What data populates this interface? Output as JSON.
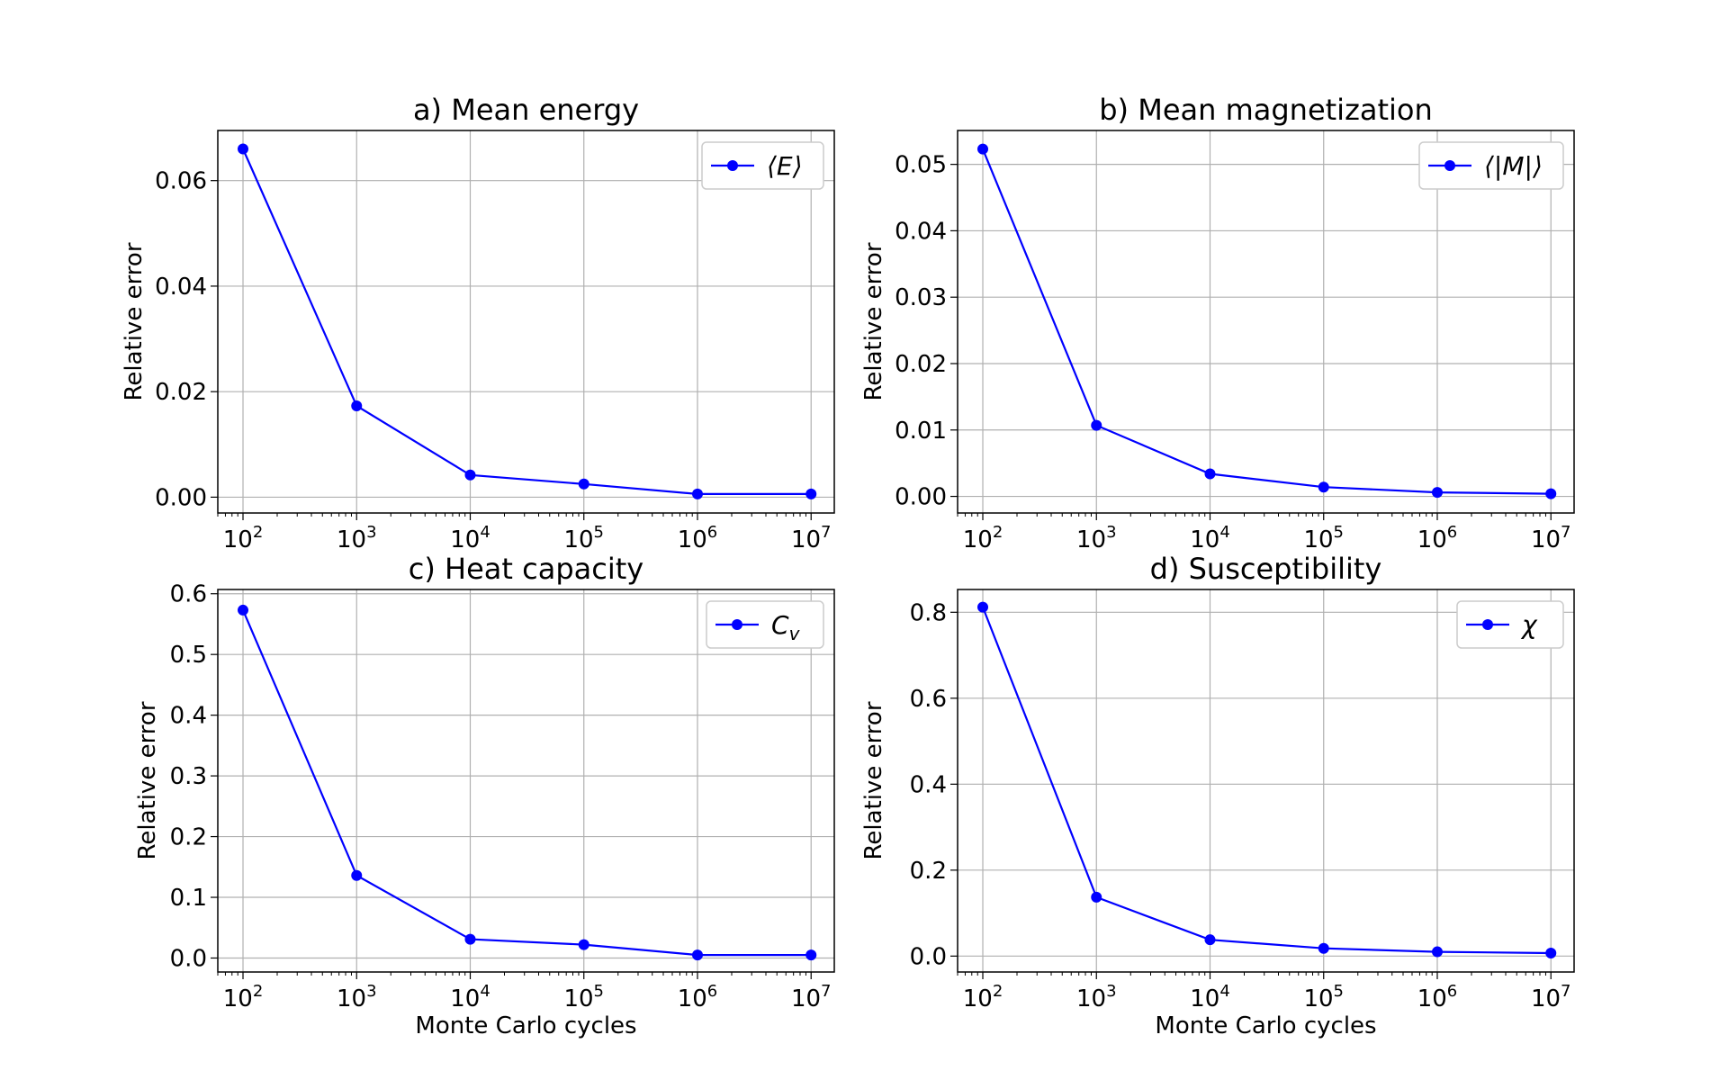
{
  "figure": {
    "xlabel": "Monte Carlo cycles",
    "ylabel": "Relative error"
  },
  "colors": {
    "series": "#0000ff",
    "grid": "#b0b0b0",
    "axes": "#000000"
  },
  "chart_data": [
    {
      "type": "line",
      "title": "a) Mean energy",
      "xscale": "log",
      "xlim": [
        60,
        16000000
      ],
      "ylim": [
        -0.003,
        0.0695
      ],
      "x": [
        100,
        1000,
        10000,
        100000,
        1000000,
        10000000
      ],
      "x_tick_exponents": [
        "2",
        "3",
        "4",
        "5",
        "6",
        "7"
      ],
      "y_ticks": [
        "0.00",
        "0.02",
        "0.04",
        "0.06"
      ],
      "y_tick_values": [
        0,
        0.02,
        0.04,
        0.06
      ],
      "ylabel": "Relative error",
      "xlabel": "",
      "grid": true,
      "legend_position": "top-right",
      "series": [
        {
          "name": "⟨E⟩",
          "values": [
            0.066,
            0.0173,
            0.0042,
            0.0025,
            0.0006,
            0.0006
          ]
        }
      ]
    },
    {
      "type": "line",
      "title": "b) Mean magnetization",
      "xscale": "log",
      "xlim": [
        60,
        16000000
      ],
      "ylim": [
        -0.0025,
        0.0551
      ],
      "x": [
        100,
        1000,
        10000,
        100000,
        1000000,
        10000000
      ],
      "x_tick_exponents": [
        "2",
        "3",
        "4",
        "5",
        "6",
        "7"
      ],
      "y_ticks": [
        "0.00",
        "0.01",
        "0.02",
        "0.03",
        "0.04",
        "0.05"
      ],
      "y_tick_values": [
        0,
        0.01,
        0.02,
        0.03,
        0.04,
        0.05
      ],
      "ylabel": "Relative error",
      "xlabel": "",
      "grid": true,
      "legend_position": "top-right",
      "series": [
        {
          "name": "⟨|M|⟩",
          "values": [
            0.0523,
            0.0107,
            0.0034,
            0.0014,
            0.0006,
            0.0004
          ]
        }
      ]
    },
    {
      "type": "line",
      "title": "c) Heat capacity",
      "xscale": "log",
      "xlim": [
        60,
        16000000
      ],
      "ylim": [
        -0.023,
        0.607
      ],
      "x": [
        100,
        1000,
        10000,
        100000,
        1000000,
        10000000
      ],
      "x_tick_exponents": [
        "2",
        "3",
        "4",
        "5",
        "6",
        "7"
      ],
      "y_ticks": [
        "0.0",
        "0.1",
        "0.2",
        "0.3",
        "0.4",
        "0.5",
        "0.6"
      ],
      "y_tick_values": [
        0,
        0.1,
        0.2,
        0.3,
        0.4,
        0.5,
        0.6
      ],
      "ylabel": "Relative error",
      "xlabel": "Monte Carlo cycles",
      "grid": true,
      "legend_position": "top-right",
      "series": [
        {
          "name": "C_v",
          "values": [
            0.573,
            0.136,
            0.031,
            0.022,
            0.005,
            0.005
          ]
        }
      ]
    },
    {
      "type": "line",
      "title": "d) Susceptibility",
      "xscale": "log",
      "xlim": [
        60,
        16000000
      ],
      "ylim": [
        -0.037,
        0.853
      ],
      "x": [
        100,
        1000,
        10000,
        100000,
        1000000,
        10000000
      ],
      "x_tick_exponents": [
        "2",
        "3",
        "4",
        "5",
        "6",
        "7"
      ],
      "y_ticks": [
        "0.0",
        "0.2",
        "0.4",
        "0.6",
        "0.8"
      ],
      "y_tick_values": [
        0,
        0.2,
        0.4,
        0.6,
        0.8
      ],
      "ylabel": "Relative error",
      "xlabel": "Monte Carlo cycles",
      "grid": true,
      "legend_position": "top-right",
      "series": [
        {
          "name": "χ",
          "values": [
            0.812,
            0.137,
            0.038,
            0.018,
            0.01,
            0.007
          ]
        }
      ]
    }
  ]
}
